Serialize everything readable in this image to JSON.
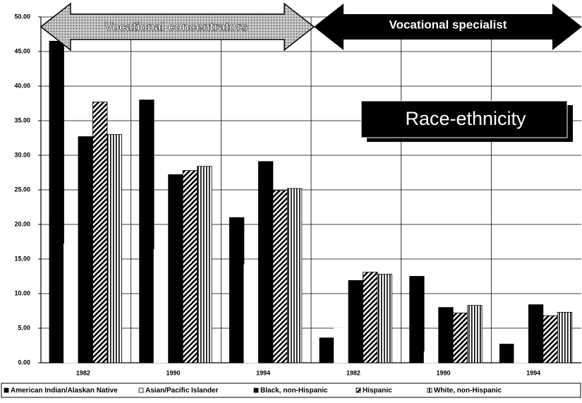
{
  "chart_data": {
    "type": "bar",
    "annotations": [
      "Vocational concentrators",
      "Vocational specialist",
      "Race-ethnicity"
    ],
    "categories": [
      "1982",
      "1990",
      "1994",
      "1982",
      "1990",
      "1994"
    ],
    "series": [
      {
        "name": "American Indian/Alaskan Native",
        "color": "#000000",
        "values": [
          46.5,
          38.0,
          21.0,
          3.6,
          12.5,
          2.7
        ]
      },
      {
        "name": "Asian/Pacific Islander",
        "color": "#ffffff",
        "values": [
          17.2,
          16.4,
          14.2,
          5.0,
          1.6,
          4.1
        ]
      },
      {
        "name": "Black, non-Hispanic",
        "color": "#000000",
        "values": [
          32.7,
          27.2,
          29.1,
          11.9,
          8.0,
          8.4
        ]
      },
      {
        "name": "Hispanic",
        "color": "#555555",
        "values": [
          37.7,
          27.8,
          24.9,
          13.1,
          7.2,
          6.8
        ]
      },
      {
        "name": "White, non-Hispanic",
        "color": "#999999",
        "values": [
          33.0,
          28.4,
          25.2,
          12.8,
          8.3,
          7.3
        ]
      }
    ],
    "ylim": [
      0,
      50
    ],
    "yticks": [
      {
        "value": 0,
        "label": "0.00"
      },
      {
        "value": 5,
        "label": "5.00"
      },
      {
        "value": 10,
        "label": "10.00"
      },
      {
        "value": 15,
        "label": "15.00"
      },
      {
        "value": 20,
        "label": "20.00"
      },
      {
        "value": 25,
        "label": "25.00"
      },
      {
        "value": 30,
        "label": "30.00"
      },
      {
        "value": 35,
        "label": "35.00"
      },
      {
        "value": 40,
        "label": "40.00"
      },
      {
        "value": 45,
        "label": "45.00"
      },
      {
        "value": 50,
        "label": "50.00"
      }
    ],
    "grid": true
  }
}
